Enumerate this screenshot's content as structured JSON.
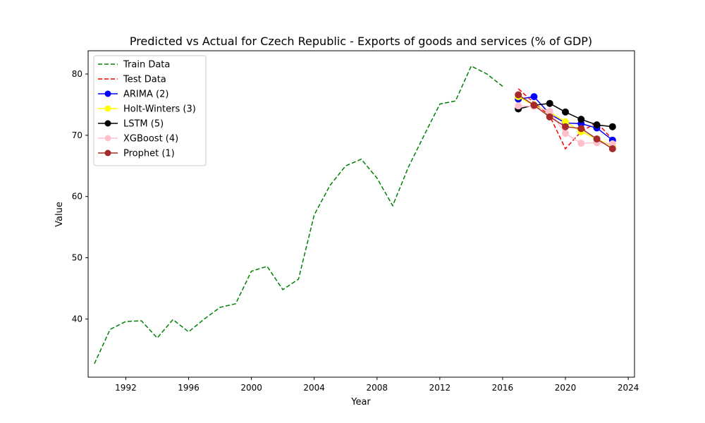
{
  "chart_data": {
    "type": "line",
    "title": "Predicted vs Actual for Czech Republic - Exports of goods and services (% of GDP)",
    "xlabel": "Year",
    "ylabel": "Value",
    "xlim": [
      1989.6,
      2024.4
    ],
    "ylim": [
      30.5,
      83.8
    ],
    "xticks": [
      "1992",
      "1996",
      "2000",
      "2004",
      "2008",
      "2012",
      "2016",
      "2020",
      "2024"
    ],
    "yticks": [
      "40",
      "50",
      "60",
      "70",
      "80"
    ],
    "grid": false,
    "legend_position": "top-left",
    "series": [
      {
        "name": "Train Data",
        "color": "#008000",
        "style": "dashed",
        "markers": false,
        "x": [
          1990,
          1991,
          1992,
          1993,
          1994,
          1995,
          1996,
          1997,
          1998,
          1999,
          2000,
          2001,
          2002,
          2003,
          2004,
          2005,
          2006,
          2007,
          2008,
          2009,
          2010,
          2011,
          2012,
          2013,
          2014,
          2015,
          2016
        ],
        "y": [
          32.7,
          38.3,
          39.6,
          39.7,
          36.9,
          39.9,
          37.9,
          40.0,
          41.9,
          42.5,
          47.8,
          48.6,
          44.8,
          46.5,
          57.0,
          61.8,
          65.0,
          66.1,
          63.0,
          58.5,
          64.8,
          70.0,
          75.1,
          75.6,
          81.3,
          80.0,
          78.0
        ]
      },
      {
        "name": "Test Data",
        "color": "#ff0000",
        "style": "dashed",
        "markers": false,
        "x": [
          2017,
          2018,
          2019,
          2020,
          2021,
          2022,
          2023
        ],
        "y": [
          77.6,
          75.3,
          73.2,
          67.8,
          70.6,
          72.1,
          69.3
        ]
      },
      {
        "name": "ARIMA (2)",
        "color": "#0000ff",
        "style": "solid",
        "markers": true,
        "x": [
          2017,
          2018,
          2019,
          2020,
          2021,
          2022,
          2023
        ],
        "y": [
          75.9,
          76.3,
          73.5,
          72.0,
          71.9,
          71.2,
          69.2
        ]
      },
      {
        "name": "Holt-Winters (3)",
        "color": "#ffff00",
        "style": "solid",
        "markers": true,
        "x": [
          2017,
          2018,
          2019,
          2020,
          2021,
          2022,
          2023
        ],
        "y": [
          76.3,
          74.9,
          73.8,
          72.2,
          70.6,
          69.4,
          68.2
        ]
      },
      {
        "name": "LSTM (5)",
        "color": "#000000",
        "style": "solid",
        "markers": true,
        "x": [
          2017,
          2018,
          2019,
          2020,
          2021,
          2022,
          2023
        ],
        "y": [
          74.3,
          74.9,
          75.2,
          73.8,
          72.6,
          71.7,
          71.4
        ]
      },
      {
        "name": "XGBoost (4)",
        "color": "#ffc0cb",
        "style": "solid",
        "markers": true,
        "x": [
          2017,
          2018,
          2019,
          2020,
          2021,
          2022,
          2023
        ],
        "y": [
          74.8,
          74.7,
          73.9,
          70.3,
          68.7,
          68.8,
          68.6
        ]
      },
      {
        "name": "Prophet (1)",
        "color": "#a52a2a",
        "style": "solid",
        "markers": true,
        "x": [
          2017,
          2018,
          2019,
          2020,
          2021,
          2022,
          2023
        ],
        "y": [
          76.6,
          74.9,
          73.0,
          71.4,
          71.1,
          69.4,
          67.8
        ]
      }
    ]
  }
}
